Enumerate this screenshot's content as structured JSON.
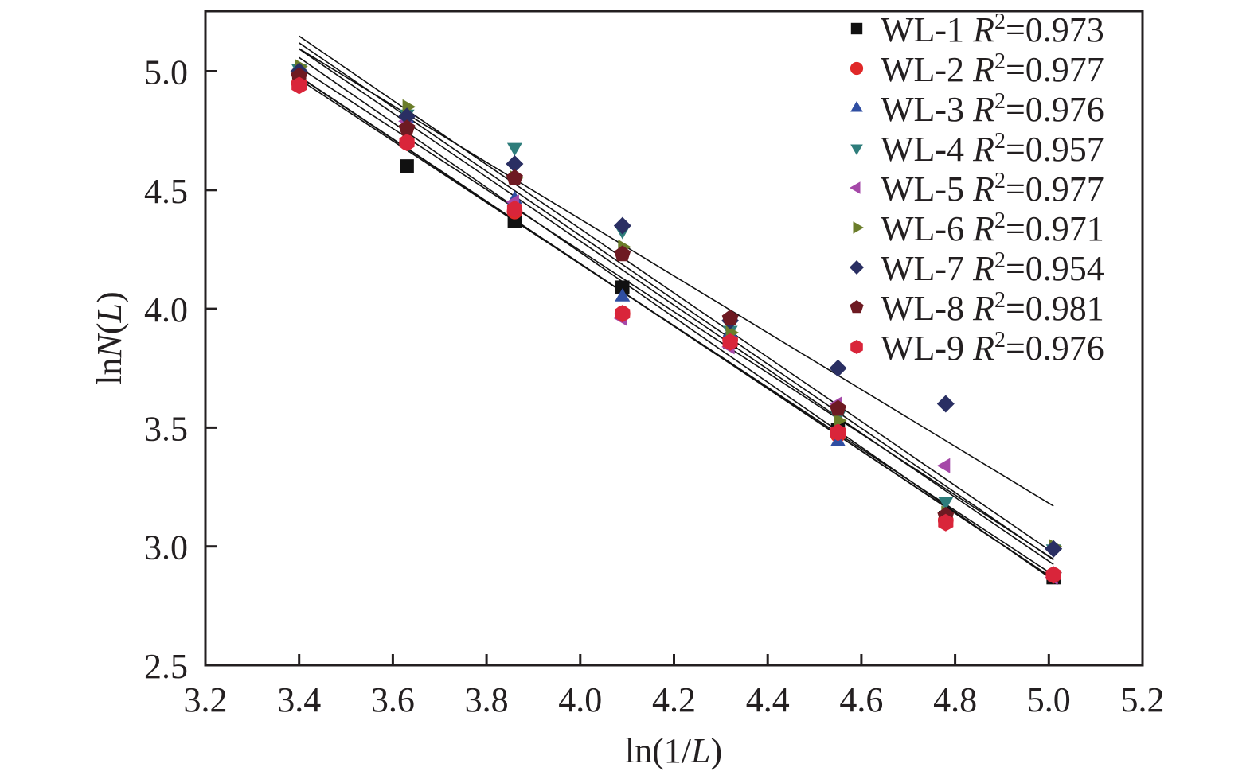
{
  "chart_data": {
    "type": "scatter",
    "title": "",
    "xlabel": {
      "prefix": "ln(1/",
      "italic": "L",
      "suffix": ")"
    },
    "ylabel": {
      "prefix": "ln",
      "italic": "N",
      "middle": "(",
      "italic2": "L",
      "suffix": ")"
    },
    "xlim": [
      3.2,
      5.2
    ],
    "ylim": [
      2.5,
      5.25
    ],
    "xticks": [
      3.2,
      3.4,
      3.6,
      3.8,
      4.0,
      4.2,
      4.4,
      4.6,
      4.8,
      5.0,
      5.2
    ],
    "xtick_labels": [
      "3.2",
      "3.4",
      "3.6",
      "3.8",
      "4.0",
      "4.2",
      "4.4",
      "4.6",
      "4.8",
      "5.0",
      "5.2"
    ],
    "yticks": [
      2.5,
      3.0,
      3.5,
      4.0,
      4.5,
      5.0
    ],
    "ytick_labels": [
      "2.5",
      "3.0",
      "3.5",
      "4.0",
      "4.5",
      "5.0"
    ],
    "grid": false,
    "legend_position": "top-right",
    "fit": "linear",
    "x": [
      3.4,
      3.63,
      3.86,
      4.09,
      4.32,
      4.55,
      4.78,
      5.01
    ],
    "series": [
      {
        "name": "WL-1",
        "r2": "0.973",
        "marker": "square",
        "color": "#111111",
        "values": [
          4.98,
          4.6,
          4.37,
          4.09,
          3.86,
          3.49,
          3.12,
          2.87
        ]
      },
      {
        "name": "WL-2",
        "r2": "0.977",
        "marker": "circle",
        "color": "#e02828",
        "values": [
          4.95,
          4.7,
          4.41,
          3.98,
          3.87,
          3.47,
          3.11,
          2.88
        ]
      },
      {
        "name": "WL-3",
        "r2": "0.976",
        "marker": "triangle-up",
        "color": "#2f4ea2",
        "values": [
          5.0,
          4.8,
          4.46,
          4.05,
          3.9,
          3.44,
          3.13,
          2.88
        ]
      },
      {
        "name": "WL-4",
        "r2": "0.957",
        "marker": "triangle-down",
        "color": "#2e7d7b",
        "values": [
          5.01,
          4.82,
          4.68,
          4.33,
          3.91,
          3.55,
          3.19,
          2.99
        ]
      },
      {
        "name": "WL-5",
        "r2": "0.977",
        "marker": "triangle-left",
        "color": "#a548a8",
        "values": [
          5.0,
          4.79,
          4.45,
          3.96,
          3.84,
          3.6,
          3.34,
          2.87
        ]
      },
      {
        "name": "WL-6",
        "r2": "0.971",
        "marker": "triangle-right",
        "color": "#6b7d2a",
        "values": [
          5.02,
          4.85,
          4.55,
          4.26,
          3.9,
          3.53,
          3.14,
          3.0
        ]
      },
      {
        "name": "WL-7",
        "r2": "0.954",
        "marker": "diamond",
        "color": "#2a2f63",
        "values": [
          5.0,
          4.81,
          4.61,
          4.35,
          3.95,
          3.75,
          3.6,
          2.99
        ]
      },
      {
        "name": "WL-8",
        "r2": "0.981",
        "marker": "pentagon",
        "color": "#6e1a22",
        "values": [
          4.98,
          4.76,
          4.55,
          4.23,
          3.96,
          3.58,
          3.13,
          2.88
        ]
      },
      {
        "name": "WL-9",
        "r2": "0.976",
        "marker": "hexagon",
        "color": "#d9253a",
        "values": [
          4.94,
          4.7,
          4.42,
          3.98,
          3.86,
          3.48,
          3.1,
          2.88
        ]
      }
    ],
    "legend_r2_label": "R",
    "legend_r2_sup": "2",
    "legend_eq": "="
  }
}
